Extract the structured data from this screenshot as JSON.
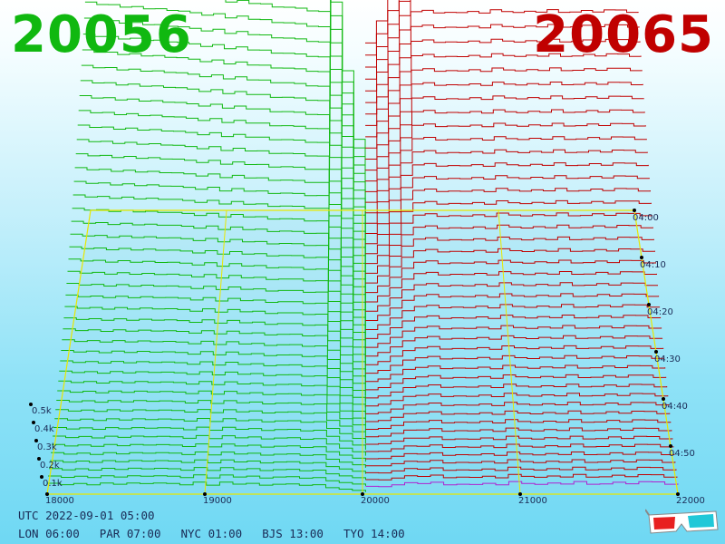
{
  "header": {
    "bid_price": "20056",
    "ask_price": "20065"
  },
  "footer": {
    "utc": "UTC 2022-09-01 05:00",
    "zones": [
      "LON 06:00",
      "PAR 07:00",
      "NYC 01:00",
      "BJS 13:00",
      "TYO 14:00"
    ]
  },
  "colors": {
    "bid": "#10b810",
    "ask": "#c00000",
    "ask_edge": "#b020d0",
    "frame": "#e8e800"
  },
  "icons": {
    "glasses": "3d-glasses-icon"
  },
  "chart_data": {
    "type": "3d-stacked-line",
    "x_axis": {
      "ticks": [
        "18000",
        "19000",
        "20000",
        "21000",
        "22000"
      ],
      "range": [
        18000,
        22000
      ]
    },
    "y_axis": {
      "ticks": [
        "0.1k",
        "0.2k",
        "0.3k",
        "0.4k",
        "0.5k"
      ]
    },
    "time_axis": {
      "ticks": [
        "04:00",
        "04:10",
        "04:20",
        "04:30",
        "04:40",
        "04:50"
      ]
    },
    "series": [
      {
        "side": "bid",
        "color": "#10b810"
      },
      {
        "side": "ask",
        "color": "#c00000"
      }
    ],
    "grid": true
  }
}
